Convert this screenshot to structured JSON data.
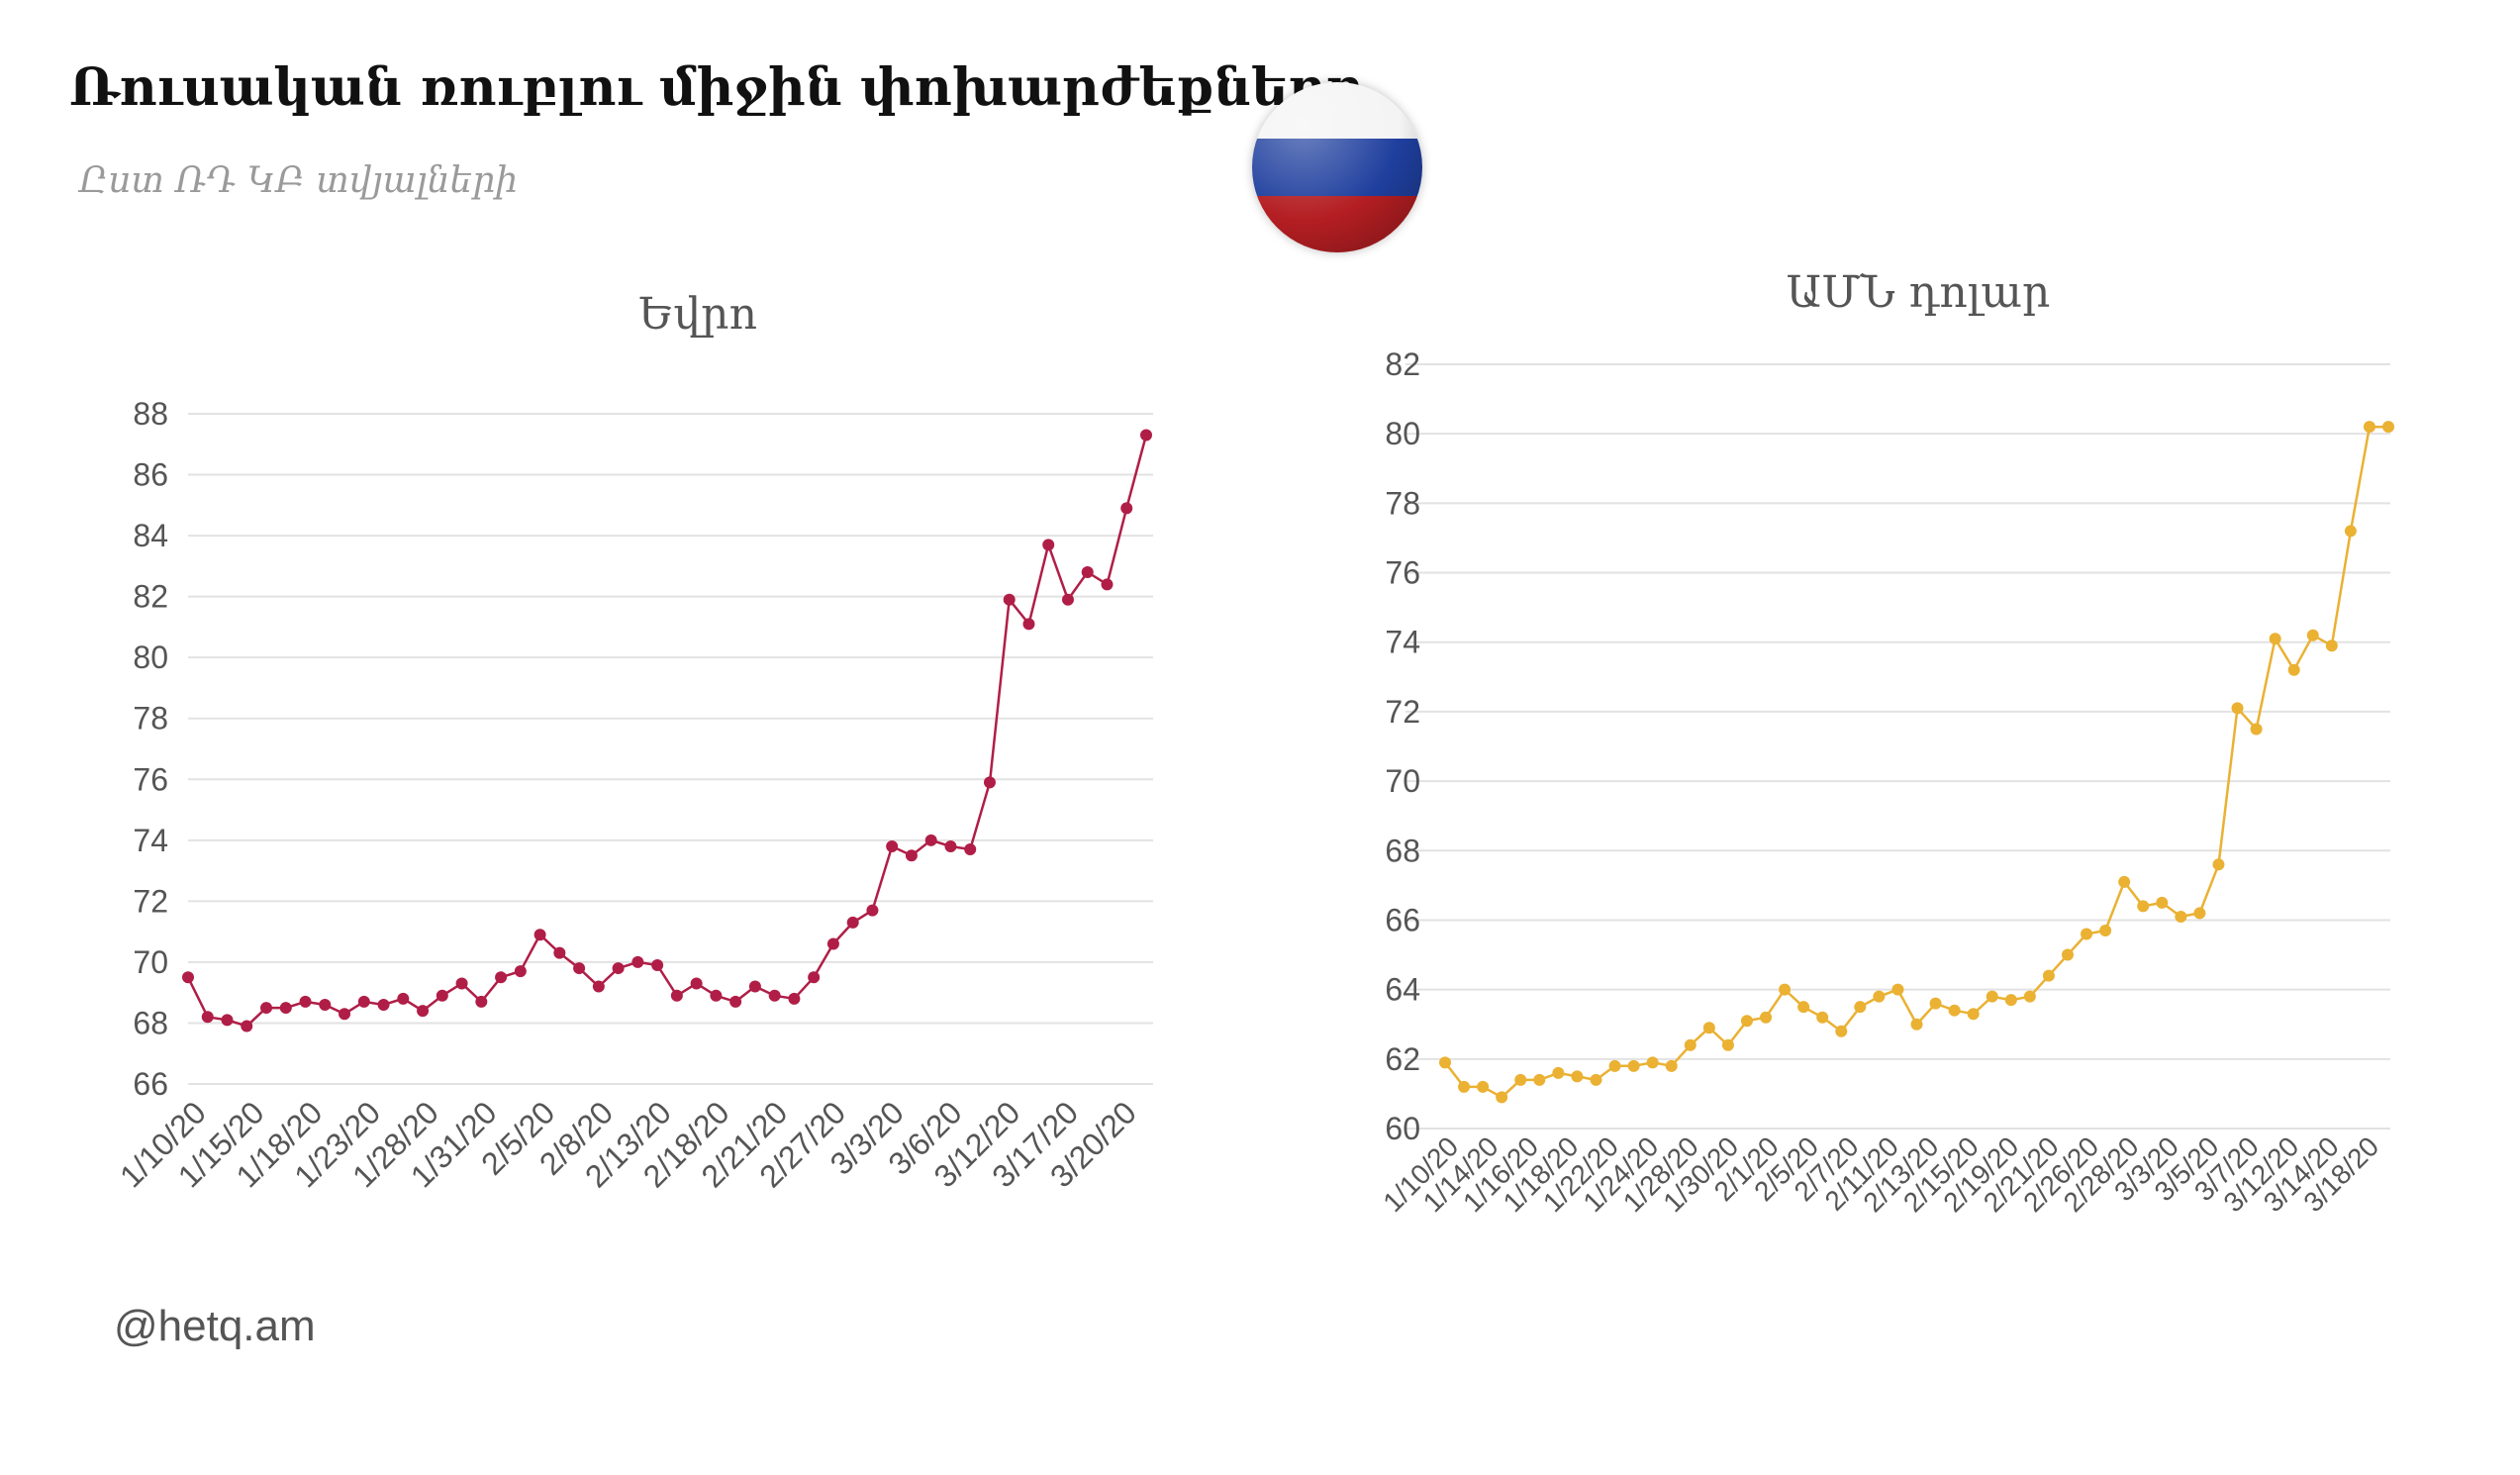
{
  "title": "Ռուսական ռուբլու միջին փոխարժեքները",
  "subtitle": "Ըստ ՌԴ ԿԲ տվյալների",
  "source": "@hetq.am",
  "flag": {
    "icon": "russia-flag-icon",
    "colors": [
      "#f4f4f4",
      "#1f3f9e",
      "#b41e22"
    ]
  },
  "chart_data": [
    {
      "type": "line",
      "title": "Եվրո",
      "color": "#b01e47",
      "ylim": [
        66,
        88
      ],
      "yticks": [
        66,
        68,
        70,
        72,
        74,
        76,
        78,
        80,
        82,
        84,
        86,
        88
      ],
      "grid": true,
      "xticklabels": [
        "1/10/20",
        "1/15/20",
        "1/18/20",
        "1/23/20",
        "1/28/20",
        "1/31/20",
        "2/5/20",
        "2/8/20",
        "2/13/20",
        "2/18/20",
        "2/21/20",
        "2/27/20",
        "3/3/20",
        "3/6/20",
        "3/12/20",
        "3/17/20",
        "3/20/20"
      ],
      "x": [
        "1/10/20",
        "1/11/20",
        "1/14/20",
        "1/15/20",
        "1/16/20",
        "1/17/20",
        "1/18/20",
        "1/21/20",
        "1/22/20",
        "1/23/20",
        "1/24/20",
        "1/25/20",
        "1/28/20",
        "1/29/20",
        "1/30/20",
        "1/31/20",
        "2/1/20",
        "2/4/20",
        "2/5/20",
        "2/6/20",
        "2/7/20",
        "2/8/20",
        "2/11/20",
        "2/12/20",
        "2/13/20",
        "2/14/20",
        "2/15/20",
        "2/18/20",
        "2/19/20",
        "2/20/20",
        "2/21/20",
        "2/22/20",
        "2/26/20",
        "2/27/20",
        "2/28/20",
        "2/29/20",
        "3/3/20",
        "3/4/20",
        "3/5/20",
        "3/6/20",
        "3/7/20",
        "3/11/20",
        "3/12/20",
        "3/13/20",
        "3/14/20",
        "3/17/20",
        "3/18/20",
        "3/19/20",
        "3/20/20",
        "3/21/20"
      ],
      "values": [
        69.5,
        68.2,
        68.1,
        67.9,
        68.5,
        68.5,
        68.7,
        68.6,
        68.3,
        68.7,
        68.6,
        68.8,
        68.4,
        68.9,
        69.3,
        68.7,
        69.5,
        69.7,
        70.9,
        70.3,
        69.8,
        69.2,
        69.8,
        70.0,
        69.9,
        68.9,
        69.3,
        68.9,
        68.7,
        69.2,
        68.9,
        68.8,
        69.5,
        70.6,
        71.3,
        71.7,
        73.8,
        73.5,
        74.0,
        73.8,
        73.7,
        75.9,
        81.9,
        81.1,
        83.7,
        81.9,
        82.8,
        82.4,
        84.9,
        87.3
      ]
    },
    {
      "type": "line",
      "title": "ԱՄՆ դոլար",
      "color": "#eab133",
      "ylim": [
        60,
        82
      ],
      "yticks": [
        60,
        62,
        64,
        66,
        68,
        70,
        72,
        74,
        76,
        78,
        80,
        82
      ],
      "grid": true,
      "xticklabels": [
        "1/10/20",
        "1/14/20",
        "1/16/20",
        "1/18/20",
        "1/22/20",
        "1/24/20",
        "1/28/20",
        "1/30/20",
        "2/1/20",
        "2/5/20",
        "2/7/20",
        "2/11/20",
        "2/13/20",
        "2/15/20",
        "2/19/20",
        "2/21/20",
        "2/26/20",
        "2/28/20",
        "3/3/20",
        "3/5/20",
        "3/7/20",
        "3/12/20",
        "3/14/20",
        "3/18/20"
      ],
      "x": [
        "1/10/20",
        "1/11/20",
        "1/14/20",
        "1/15/20",
        "1/16/20",
        "1/17/20",
        "1/18/20",
        "1/21/20",
        "1/22/20",
        "1/23/20",
        "1/24/20",
        "1/25/20",
        "1/28/20",
        "1/29/20",
        "1/30/20",
        "1/31/20",
        "2/1/20",
        "2/4/20",
        "2/5/20",
        "2/6/20",
        "2/7/20",
        "2/8/20",
        "2/11/20",
        "2/12/20",
        "2/13/20",
        "2/14/20",
        "2/15/20",
        "2/18/20",
        "2/19/20",
        "2/20/20",
        "2/21/20",
        "2/22/20",
        "2/26/20",
        "2/27/20",
        "2/28/20",
        "2/29/20",
        "3/3/20",
        "3/4/20",
        "3/5/20",
        "3/6/20",
        "3/7/20",
        "3/11/20",
        "3/12/20",
        "3/13/20",
        "3/14/20",
        "3/17/20",
        "3/18/20",
        "3/19/20",
        "3/20/20",
        "3/21/20",
        "3/22/20"
      ],
      "values": [
        61.9,
        61.2,
        61.2,
        60.9,
        61.4,
        61.4,
        61.6,
        61.5,
        61.4,
        61.8,
        61.8,
        61.9,
        61.8,
        62.4,
        62.9,
        62.4,
        63.1,
        63.2,
        64.0,
        63.5,
        63.2,
        62.8,
        63.5,
        63.8,
        64.0,
        63.0,
        63.6,
        63.4,
        63.3,
        63.8,
        63.7,
        63.8,
        64.4,
        65.0,
        65.6,
        65.7,
        67.1,
        66.4,
        66.5,
        66.1,
        66.2,
        67.6,
        72.1,
        71.5,
        74.1,
        73.2,
        74.2,
        73.9,
        77.2,
        80.2,
        80.2
      ]
    }
  ]
}
